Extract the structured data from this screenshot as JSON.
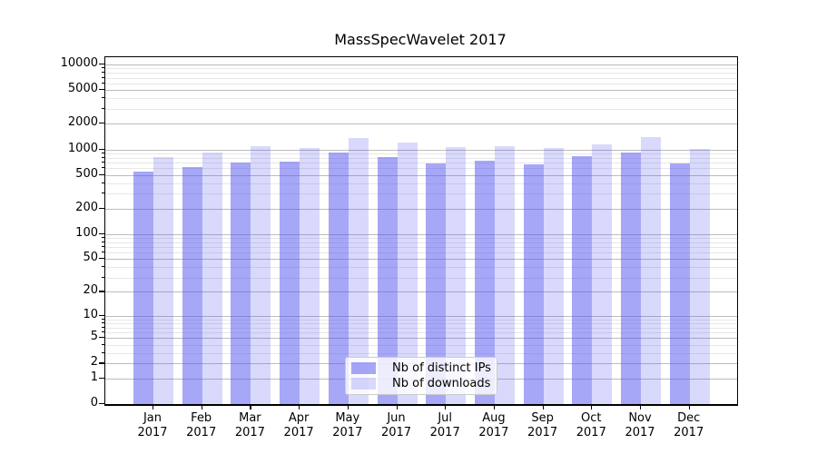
{
  "chart_data": {
    "type": "bar",
    "title": "MassSpecWavelet 2017",
    "categories": [
      "Jan",
      "Feb",
      "Mar",
      "Apr",
      "May",
      "Jun",
      "Jul",
      "Aug",
      "Sep",
      "Oct",
      "Nov",
      "Dec"
    ],
    "year_label": "2017",
    "series": [
      {
        "name": "Nb of distinct IPs",
        "color": "rgba(80,80,240,0.5)",
        "values": [
          540,
          620,
          700,
          720,
          920,
          815,
          685,
          740,
          670,
          835,
          920,
          685
        ]
      },
      {
        "name": "Nb of downloads",
        "color": "rgba(80,80,240,0.22)",
        "values": [
          810,
          920,
          1090,
          1040,
          1370,
          1210,
          1070,
          1100,
          1040,
          1150,
          1400,
          1020
        ]
      }
    ],
    "y_axis": {
      "scale": "log10(value+1)",
      "tick_values": [
        0,
        1,
        2,
        5,
        10,
        20,
        50,
        100,
        200,
        500,
        1000,
        2000,
        5000,
        10000
      ],
      "range": [
        0,
        12000
      ]
    },
    "grid": {
      "enabled": true,
      "major_color": "#bcbcbc",
      "minor_color": "#e7e7e7"
    },
    "legend": {
      "position": "lower center"
    },
    "axis_color": "#000000"
  }
}
